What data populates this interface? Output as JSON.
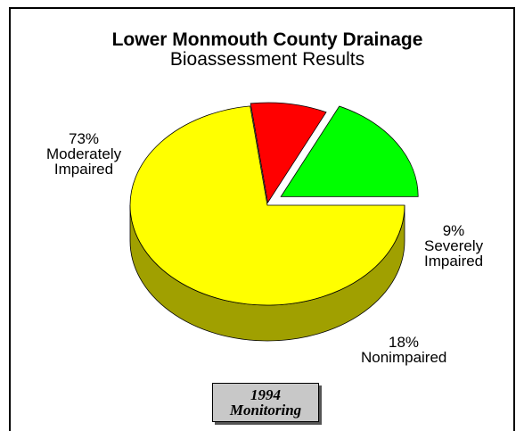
{
  "chart_data": {
    "type": "pie3d",
    "title": "Lower Monmouth County Drainage",
    "subtitle": "Bioassessment Results",
    "categories": [
      "Moderately Impaired",
      "Severely Impaired",
      "Nonimpaired"
    ],
    "values": [
      73,
      9,
      18
    ],
    "value_labels": [
      "73%",
      "9%",
      "18%"
    ],
    "colors": [
      "#ffff00",
      "#ff0000",
      "#00ff00"
    ],
    "side_colors": [
      "#a0a000",
      "#800000",
      "#009000"
    ],
    "annotation": "1994 Monitoring"
  }
}
